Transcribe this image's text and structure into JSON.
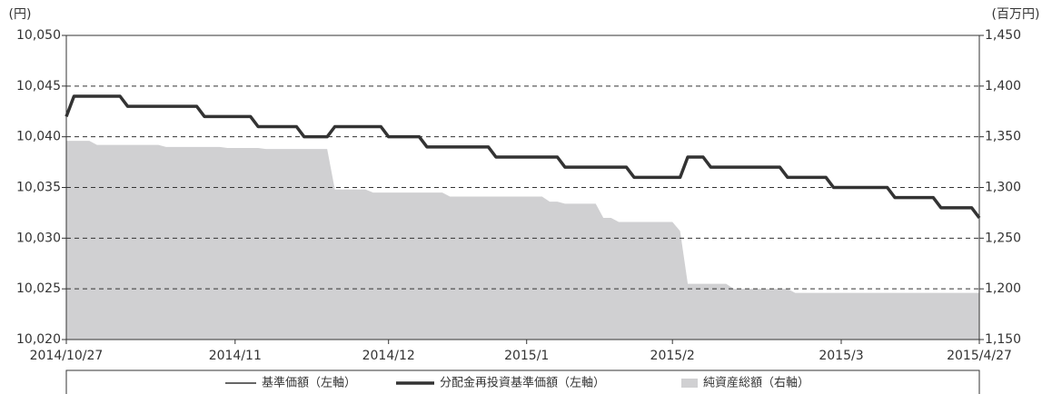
{
  "chart_data": {
    "type": "line",
    "y_label": "(円)",
    "y2_label": "(百万円)",
    "categories": [
      "2014/10/27",
      null,
      null,
      null,
      null,
      null,
      null,
      null,
      null,
      null,
      null,
      null,
      null,
      null,
      null,
      null,
      null,
      null,
      null,
      null,
      null,
      null,
      "2014/11",
      null,
      null,
      null,
      null,
      null,
      null,
      null,
      null,
      null,
      null,
      null,
      null,
      null,
      null,
      null,
      null,
      null,
      null,
      null,
      "2014/12",
      null,
      null,
      null,
      null,
      null,
      null,
      null,
      null,
      null,
      null,
      null,
      null,
      null,
      null,
      null,
      null,
      null,
      "2015/1",
      null,
      null,
      null,
      null,
      null,
      null,
      null,
      null,
      null,
      null,
      null,
      null,
      null,
      null,
      null,
      null,
      null,
      null,
      "2015/2",
      null,
      null,
      null,
      null,
      null,
      null,
      null,
      null,
      null,
      null,
      null,
      null,
      null,
      null,
      null,
      null,
      null,
      null,
      null,
      null,
      null,
      "2015/3",
      null,
      null,
      null,
      null,
      null,
      null,
      null,
      null,
      null,
      null,
      null,
      null,
      null,
      null,
      null,
      null,
      null,
      "2015/4/27"
    ],
    "series": [
      {
        "name": "基準価額（左軸）",
        "color": "#333333",
        "kind": "thin",
        "values": [
          10042,
          10044,
          10044,
          10044,
          10044,
          10044,
          10044,
          10044,
          10043,
          10043,
          10043,
          10043,
          10043,
          10043,
          10043,
          10043,
          10043,
          10043,
          10042,
          10042,
          10042,
          10042,
          10042,
          10042,
          10042,
          10041,
          10041,
          10041,
          10041,
          10041,
          10041,
          10040,
          10040,
          10040,
          10040,
          10041,
          10041,
          10041,
          10041,
          10041,
          10041,
          10041,
          10040,
          10040,
          10040,
          10040,
          10040,
          10039,
          10039,
          10039,
          10039,
          10039,
          10039,
          10039,
          10039,
          10039,
          10038,
          10038,
          10038,
          10038,
          10038,
          10038,
          10038,
          10038,
          10038,
          10037,
          10037,
          10037,
          10037,
          10037,
          10037,
          10037,
          10037,
          10037,
          10036,
          10036,
          10036,
          10036,
          10036,
          10036,
          10036,
          10038,
          10038,
          10038,
          10037,
          10037,
          10037,
          10037,
          10037,
          10037,
          10037,
          10037,
          10037,
          10037,
          10036,
          10036,
          10036,
          10036,
          10036,
          10036,
          10035,
          10035,
          10035,
          10035,
          10035,
          10035,
          10035,
          10035,
          10034,
          10034,
          10034,
          10034,
          10034,
          10034,
          10033,
          10033,
          10033,
          10033,
          10033,
          10032
        ]
      },
      {
        "name": "分配金再投資基準価額（左軸）",
        "color": "#333333",
        "kind": "thick",
        "values": [
          10042,
          10044,
          10044,
          10044,
          10044,
          10044,
          10044,
          10044,
          10043,
          10043,
          10043,
          10043,
          10043,
          10043,
          10043,
          10043,
          10043,
          10043,
          10042,
          10042,
          10042,
          10042,
          10042,
          10042,
          10042,
          10041,
          10041,
          10041,
          10041,
          10041,
          10041,
          10040,
          10040,
          10040,
          10040,
          10041,
          10041,
          10041,
          10041,
          10041,
          10041,
          10041,
          10040,
          10040,
          10040,
          10040,
          10040,
          10039,
          10039,
          10039,
          10039,
          10039,
          10039,
          10039,
          10039,
          10039,
          10038,
          10038,
          10038,
          10038,
          10038,
          10038,
          10038,
          10038,
          10038,
          10037,
          10037,
          10037,
          10037,
          10037,
          10037,
          10037,
          10037,
          10037,
          10036,
          10036,
          10036,
          10036,
          10036,
          10036,
          10036,
          10038,
          10038,
          10038,
          10037,
          10037,
          10037,
          10037,
          10037,
          10037,
          10037,
          10037,
          10037,
          10037,
          10036,
          10036,
          10036,
          10036,
          10036,
          10036,
          10035,
          10035,
          10035,
          10035,
          10035,
          10035,
          10035,
          10035,
          10034,
          10034,
          10034,
          10034,
          10034,
          10034,
          10033,
          10033,
          10033,
          10033,
          10033,
          10032
        ]
      },
      {
        "name": "純資産総額（右軸）",
        "color": "#d0d0d2",
        "kind": "area",
        "axis": "y2",
        "values": [
          1346,
          1346,
          1346,
          1346,
          1342,
          1342,
          1342,
          1342,
          1342,
          1342,
          1342,
          1342,
          1342,
          1340,
          1340,
          1340,
          1340,
          1340,
          1340,
          1340,
          1340,
          1339,
          1339,
          1339,
          1339,
          1339,
          1338,
          1338,
          1338,
          1338,
          1338,
          1338,
          1338,
          1338,
          1338,
          1298,
          1298,
          1298,
          1298,
          1298,
          1295,
          1295,
          1295,
          1295,
          1295,
          1295,
          1295,
          1295,
          1295,
          1295,
          1291,
          1291,
          1291,
          1291,
          1291,
          1291,
          1291,
          1291,
          1291,
          1291,
          1291,
          1291,
          1291,
          1286,
          1286,
          1284,
          1284,
          1284,
          1284,
          1284,
          1270,
          1270,
          1266,
          1266,
          1266,
          1266,
          1266,
          1266,
          1266,
          1266,
          1257,
          1205,
          1205,
          1205,
          1205,
          1205,
          1205,
          1200,
          1200,
          1200,
          1200,
          1200,
          1200,
          1200,
          1200,
          1196,
          1196,
          1196,
          1196,
          1196,
          1196,
          1196,
          1196,
          1196,
          1196,
          1196,
          1196,
          1196,
          1196,
          1196,
          1196,
          1196,
          1196,
          1196,
          1196,
          1196,
          1196,
          1196,
          1196,
          1196
        ]
      }
    ],
    "ylim": [
      10020,
      10050
    ],
    "yticks": [
      {
        "value": 10020,
        "label": "10,020"
      },
      {
        "value": 10025,
        "label": "10,025"
      },
      {
        "value": 10030,
        "label": "10,030"
      },
      {
        "value": 10035,
        "label": "10,035"
      },
      {
        "value": 10040,
        "label": "10,040"
      },
      {
        "value": 10045,
        "label": "10,045"
      },
      {
        "value": 10050,
        "label": "10,050"
      }
    ],
    "y2lim": [
      1150,
      1450
    ],
    "y2ticks": [
      {
        "value": 1150,
        "label": "1,150"
      },
      {
        "value": 1200,
        "label": "1,200"
      },
      {
        "value": 1250,
        "label": "1,250"
      },
      {
        "value": 1300,
        "label": "1,300"
      },
      {
        "value": 1350,
        "label": "1,350"
      },
      {
        "value": 1400,
        "label": "1,400"
      },
      {
        "value": 1450,
        "label": "1,450"
      }
    ],
    "grid": true,
    "legend": "bottom"
  }
}
